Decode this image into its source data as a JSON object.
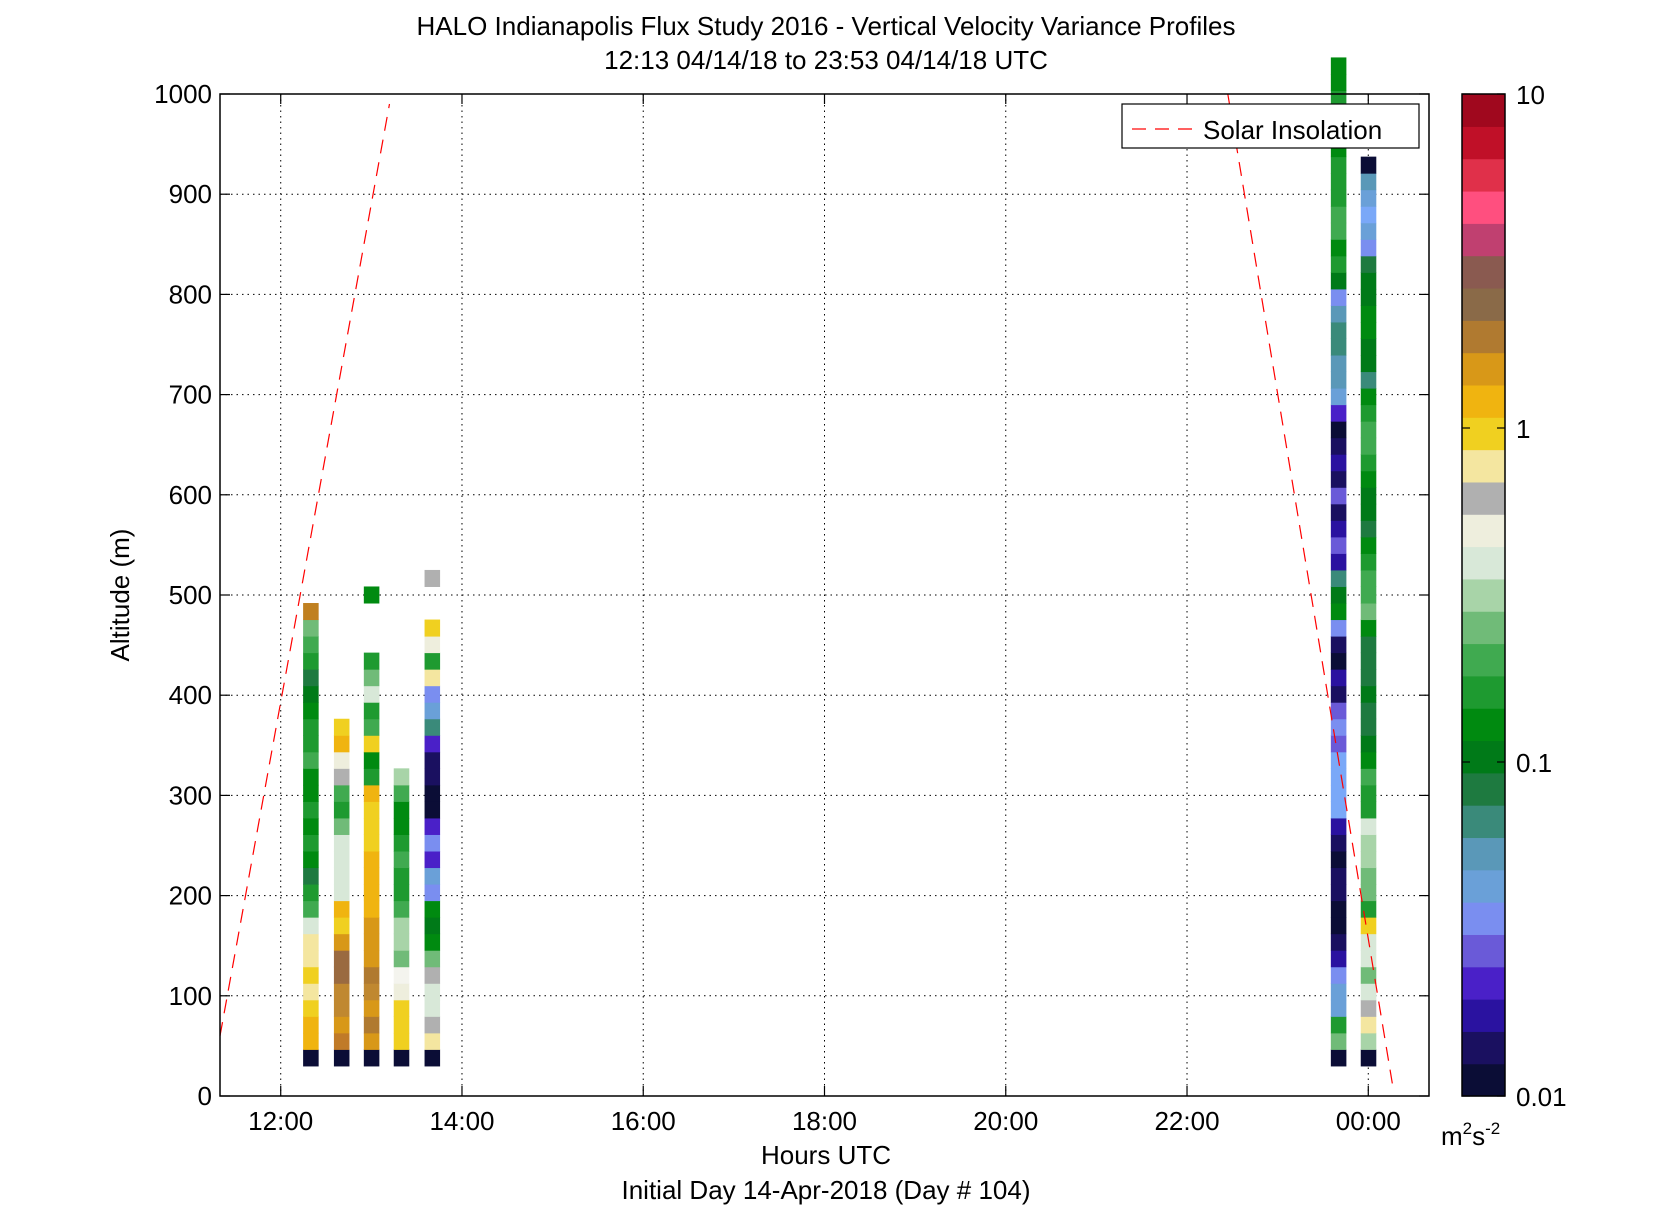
{
  "chart_data": {
    "type": "heatmap",
    "title": "HALO Indianapolis Flux Study 2016 - Vertical Velocity Variance Profiles",
    "subtitle": "12:13 04/14/18 to 23:53 04/14/18  UTC",
    "xlabel": "Hours UTC",
    "xlabel2": "Initial Day 14-Apr-2018 (Day # 104)",
    "ylabel": "Altitude (m)",
    "xlim": [
      11.33,
      24.67
    ],
    "ylim": [
      0,
      1000
    ],
    "x_ticks": [
      12,
      14,
      16,
      18,
      20,
      22,
      24
    ],
    "x_tick_labels": [
      "12:00",
      "14:00",
      "16:00",
      "18:00",
      "20:00",
      "22:00",
      "00:00"
    ],
    "y_ticks": [
      0,
      100,
      200,
      300,
      400,
      500,
      600,
      700,
      800,
      900,
      1000
    ],
    "y_tick_labels": [
      "0",
      "100",
      "200",
      "300",
      "400",
      "500",
      "600",
      "700",
      "800",
      "900",
      "1000"
    ],
    "grid": true,
    "legend": {
      "placement": "top-right",
      "entries": [
        {
          "label": "Solar Insolation",
          "style": "dashed",
          "color": "#ff0000"
        }
      ]
    },
    "colorbar": {
      "scale": "log",
      "min": 0.01,
      "max": 10,
      "tick_values": [
        0.01,
        0.1,
        1,
        10
      ],
      "tick_labels": [
        "0.01",
        "0.1",
        "1",
        "10"
      ],
      "unit": "m",
      "unit_exp1": "2",
      "unit_s": "s",
      "unit_exp2": "-2",
      "colors": [
        "#0b0d36",
        "#1a1060",
        "#2a12a0",
        "#4a20c8",
        "#6a5ad8",
        "#7a8ef0",
        "#6aa0d8",
        "#5a98b8",
        "#3a8a7a",
        "#1e7a40",
        "#007a18",
        "#008a10",
        "#1e9a30",
        "#40aa50",
        "#70bb78",
        "#a8d4a8",
        "#d8e8d8",
        "#eeeedd",
        "#b0b0b0",
        "#f4e6a0",
        "#f0d020",
        "#f0b410",
        "#d89818",
        "#b07a30",
        "#8a6a48",
        "#8a5a50",
        "#c04070",
        "#ff4f7f",
        "#e0304a",
        "#c01028",
        "#a0081e"
      ]
    },
    "bin_width_hours": 0.166,
    "gate_height_m": 16.5,
    "profiles": [
      {
        "time": 12.33,
        "bottom": 30,
        "cells": [
          "#0b0d36",
          "#f0b410",
          "#f0b410",
          "#f0d020",
          "#f4e6a0",
          "#f0d020",
          "#f4e6a0",
          "#f4e6a0",
          "#d8e8d8",
          "#40aa50",
          "#1e9a30",
          "#1e7a40",
          "#008a10",
          "#1e9a30",
          "#008a10",
          "#1e9a30",
          "#008a10",
          "#008a10",
          "#40aa50",
          "#1e9a30",
          "#1e9a30",
          "#008a10",
          "#007a18",
          "#1e7a40",
          "#1e9a30",
          "#40aa50",
          "#70bb78",
          "#c08020"
        ]
      },
      {
        "time": 12.67,
        "bottom": 30,
        "cells": [
          "#0b0d36",
          "#c07a28",
          "#d89818",
          "#c08830",
          "#c08830",
          "#9a6a40",
          "#9a6a40",
          "#d89818",
          "#f0d020",
          "#f0b410",
          "#d8e8d8",
          "#d8e8d8",
          "#d8e8d8",
          "#d8e8d8",
          "#70bb78",
          "#1e9a30",
          "#40aa50",
          "#b0b0b0",
          "#eeeedd",
          "#f0b410",
          "#f0d020"
        ]
      },
      {
        "time": 13.0,
        "bottom": 30,
        "cells": [
          "#0b0d36",
          "#d89818",
          "#b07a30",
          "#d89818",
          "#c08830",
          "#b07a30",
          "#d89818",
          "#d89818",
          "#d89818",
          "#f0b410",
          "#f0b410",
          "#f0b410",
          "#f0b410",
          "#f0d020",
          "#f0d020",
          "#f0d020",
          "#f0b410",
          "#1e9a30",
          "#008a10",
          "#f0d020",
          "#40aa50",
          "#1e9a30",
          "#d8e8d8",
          "#70bb78",
          "#1e9a30",
          "null",
          "null",
          "null",
          "#008a10"
        ]
      },
      {
        "time": 13.33,
        "bottom": 30,
        "cells": [
          "#0b0d36",
          "#f0d020",
          "#f0d020",
          "#f0d020",
          "#eeeedd",
          "#f4f4ee",
          "#70bb78",
          "#a8d4a8",
          "#a8d4a8",
          "#40aa50",
          "#1e9a30",
          "#1e9a30",
          "#40aa50",
          "#1e9a30",
          "#008a10",
          "#008a10",
          "#40aa50",
          "#a8d4a8"
        ]
      },
      {
        "time": 13.67,
        "bottom": 30,
        "cells": [
          "#0b0d36",
          "#f4e6a0",
          "#b0b0b0",
          "#d8e8d8",
          "#d8e8d8",
          "#b0b0b0",
          "#70bb78",
          "#008a10",
          "#007a18",
          "#008a10",
          "#7a8ef0",
          "#6aa0d8",
          "#4a20c8",
          "#7a8ef0",
          "#4a20c8",
          "#0b0d36",
          "#0b0d36",
          "#1a1060",
          "#1a1060",
          "#4a20c8",
          "#3a8a7a",
          "#6aa0d8",
          "#7a8ef0",
          "#f4e6a0",
          "#1e9a30",
          "#eeeedd",
          "#f0d020",
          "null",
          "null",
          "#b0b0b0"
        ]
      },
      {
        "time": 23.67,
        "bottom": 30,
        "cells": [
          "#0b0d36",
          "#70bb78",
          "#1e9a30",
          "#6aa0d8",
          "#6aa0d8",
          "#7a8ef0",
          "#2a12a0",
          "#1a1060",
          "#0b0d36",
          "#0b0d36",
          "#1a1060",
          "#1a1060",
          "#0b0d36",
          "#1a1060",
          "#2a12a0",
          "#7aa8f8",
          "#7aa8f8",
          "#7aa8f8",
          "#7aa8f8",
          "#6a5ad8",
          "#7a8ef0",
          "#6a5ad8",
          "#1a1060",
          "#2a12a0",
          "#0b0d36",
          "#1a1060",
          "#7a8ef0",
          "#008a10",
          "#007a18",
          "#3a8a7a",
          "#2a12a0",
          "#6a5ad8",
          "#2a12a0",
          "#1a1060",
          "#6a5ad8",
          "#1a1060",
          "#2a12a0",
          "#1a1060",
          "#0b0d36",
          "#4a20c8",
          "#6aa0d8",
          "#5a98b8",
          "#5a98b8",
          "#3a8a7a",
          "#3a8a7a",
          "#5a98b8",
          "#7a8ef0",
          "#007a18",
          "#1e9a30",
          "#008a10",
          "#40aa50",
          "#40aa50",
          "#1e9a30",
          "#1e9a30",
          "#1e9a30",
          "#008a10",
          "#008a10",
          "#008a10",
          "#1e9a30",
          "#008a10",
          "#008a10"
        ]
      },
      {
        "time": 24.0,
        "bottom": 30,
        "cells": [
          "#0b0d36",
          "#a8d4a8",
          "#f4e6a0",
          "#b0b0b0",
          "#d8e8d8",
          "#70bb78",
          "#d8e8d8",
          "#d8e8d8",
          "#f0d020",
          "#1e9a30",
          "#70bb78",
          "#70bb78",
          "#a8d4a8",
          "#a8d4a8",
          "#d8e8d8",
          "#1e9a30",
          "#1e9a30",
          "#40aa50",
          "#008a10",
          "#007a18",
          "#1e7a40",
          "#1e7a40",
          "#007a18",
          "#1e7a40",
          "#1e7a40",
          "#1e7a40",
          "#008a10",
          "#70bb78",
          "#40aa50",
          "#40aa50",
          "#1e9a30",
          "#008a10",
          "#1e7a40",
          "#007a18",
          "#007a18",
          "#008a10",
          "#1e9a30",
          "#40aa50",
          "#40aa50",
          "#1e9a30",
          "#008a10",
          "#3a8a7a",
          "#007a18",
          "#007a18",
          "#008a10",
          "#008a10",
          "#007a18",
          "#007a18",
          "#1e7a40",
          "#7a8ef0",
          "#6aa0d8",
          "#7aa8f8",
          "#6aa0d8",
          "#5a98b8",
          "#0b0d36"
        ]
      }
    ],
    "solar_insolation": [
      {
        "name": "morning",
        "points": [
          [
            11.33,
            60
          ],
          [
            13.2,
            990
          ]
        ]
      },
      {
        "name": "evening",
        "points": [
          [
            22.45,
            1000
          ],
          [
            24.27,
            10
          ]
        ]
      }
    ]
  }
}
